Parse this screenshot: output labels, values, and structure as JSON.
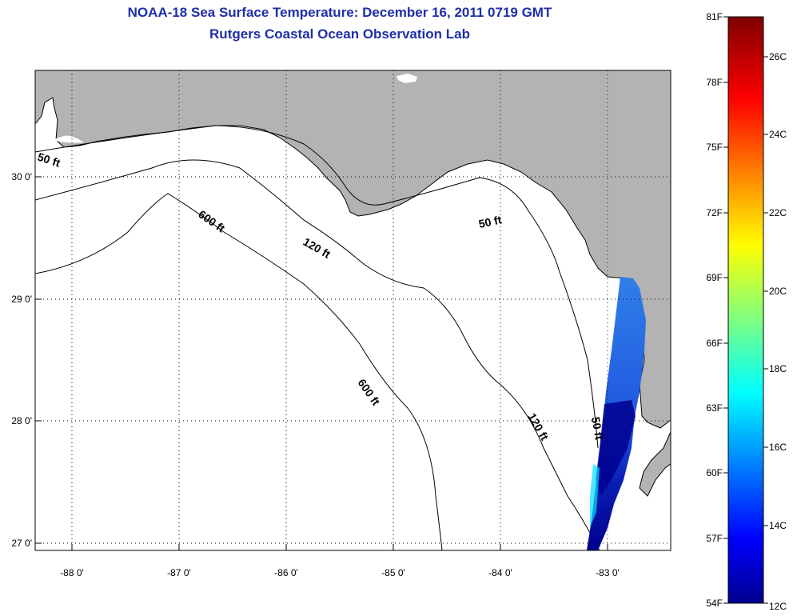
{
  "header": {
    "title": "NOAA-18 Sea Surface Temperature:  December 16, 2011 0719 GMT",
    "subtitle": "Rutgers Coastal Ocean Observation Lab"
  },
  "map": {
    "lon_ticks": [
      "-88 0'",
      "-87 0'",
      "-86 0'",
      "-85 0'",
      "-84 0'",
      "-83 0'"
    ],
    "lat_ticks": [
      "30 0'",
      "29 0'",
      "28 0'",
      "27 0'"
    ],
    "contours": [
      "50 ft",
      "600 ft",
      "120 ft",
      "50 ft",
      "600 ft",
      "120 ft",
      "50 ft"
    ],
    "colors": {
      "land": "#b3b3b3",
      "water": "#ffffff",
      "frame": "#000000"
    }
  },
  "colorbar": {
    "fahrenheit": [
      "81F",
      "78F",
      "75F",
      "72F",
      "69F",
      "66F",
      "63F",
      "60F",
      "57F",
      "54F"
    ],
    "celsius": [
      "26C",
      "24C",
      "22C",
      "20C",
      "18C",
      "16C",
      "14C",
      "12C"
    ]
  }
}
